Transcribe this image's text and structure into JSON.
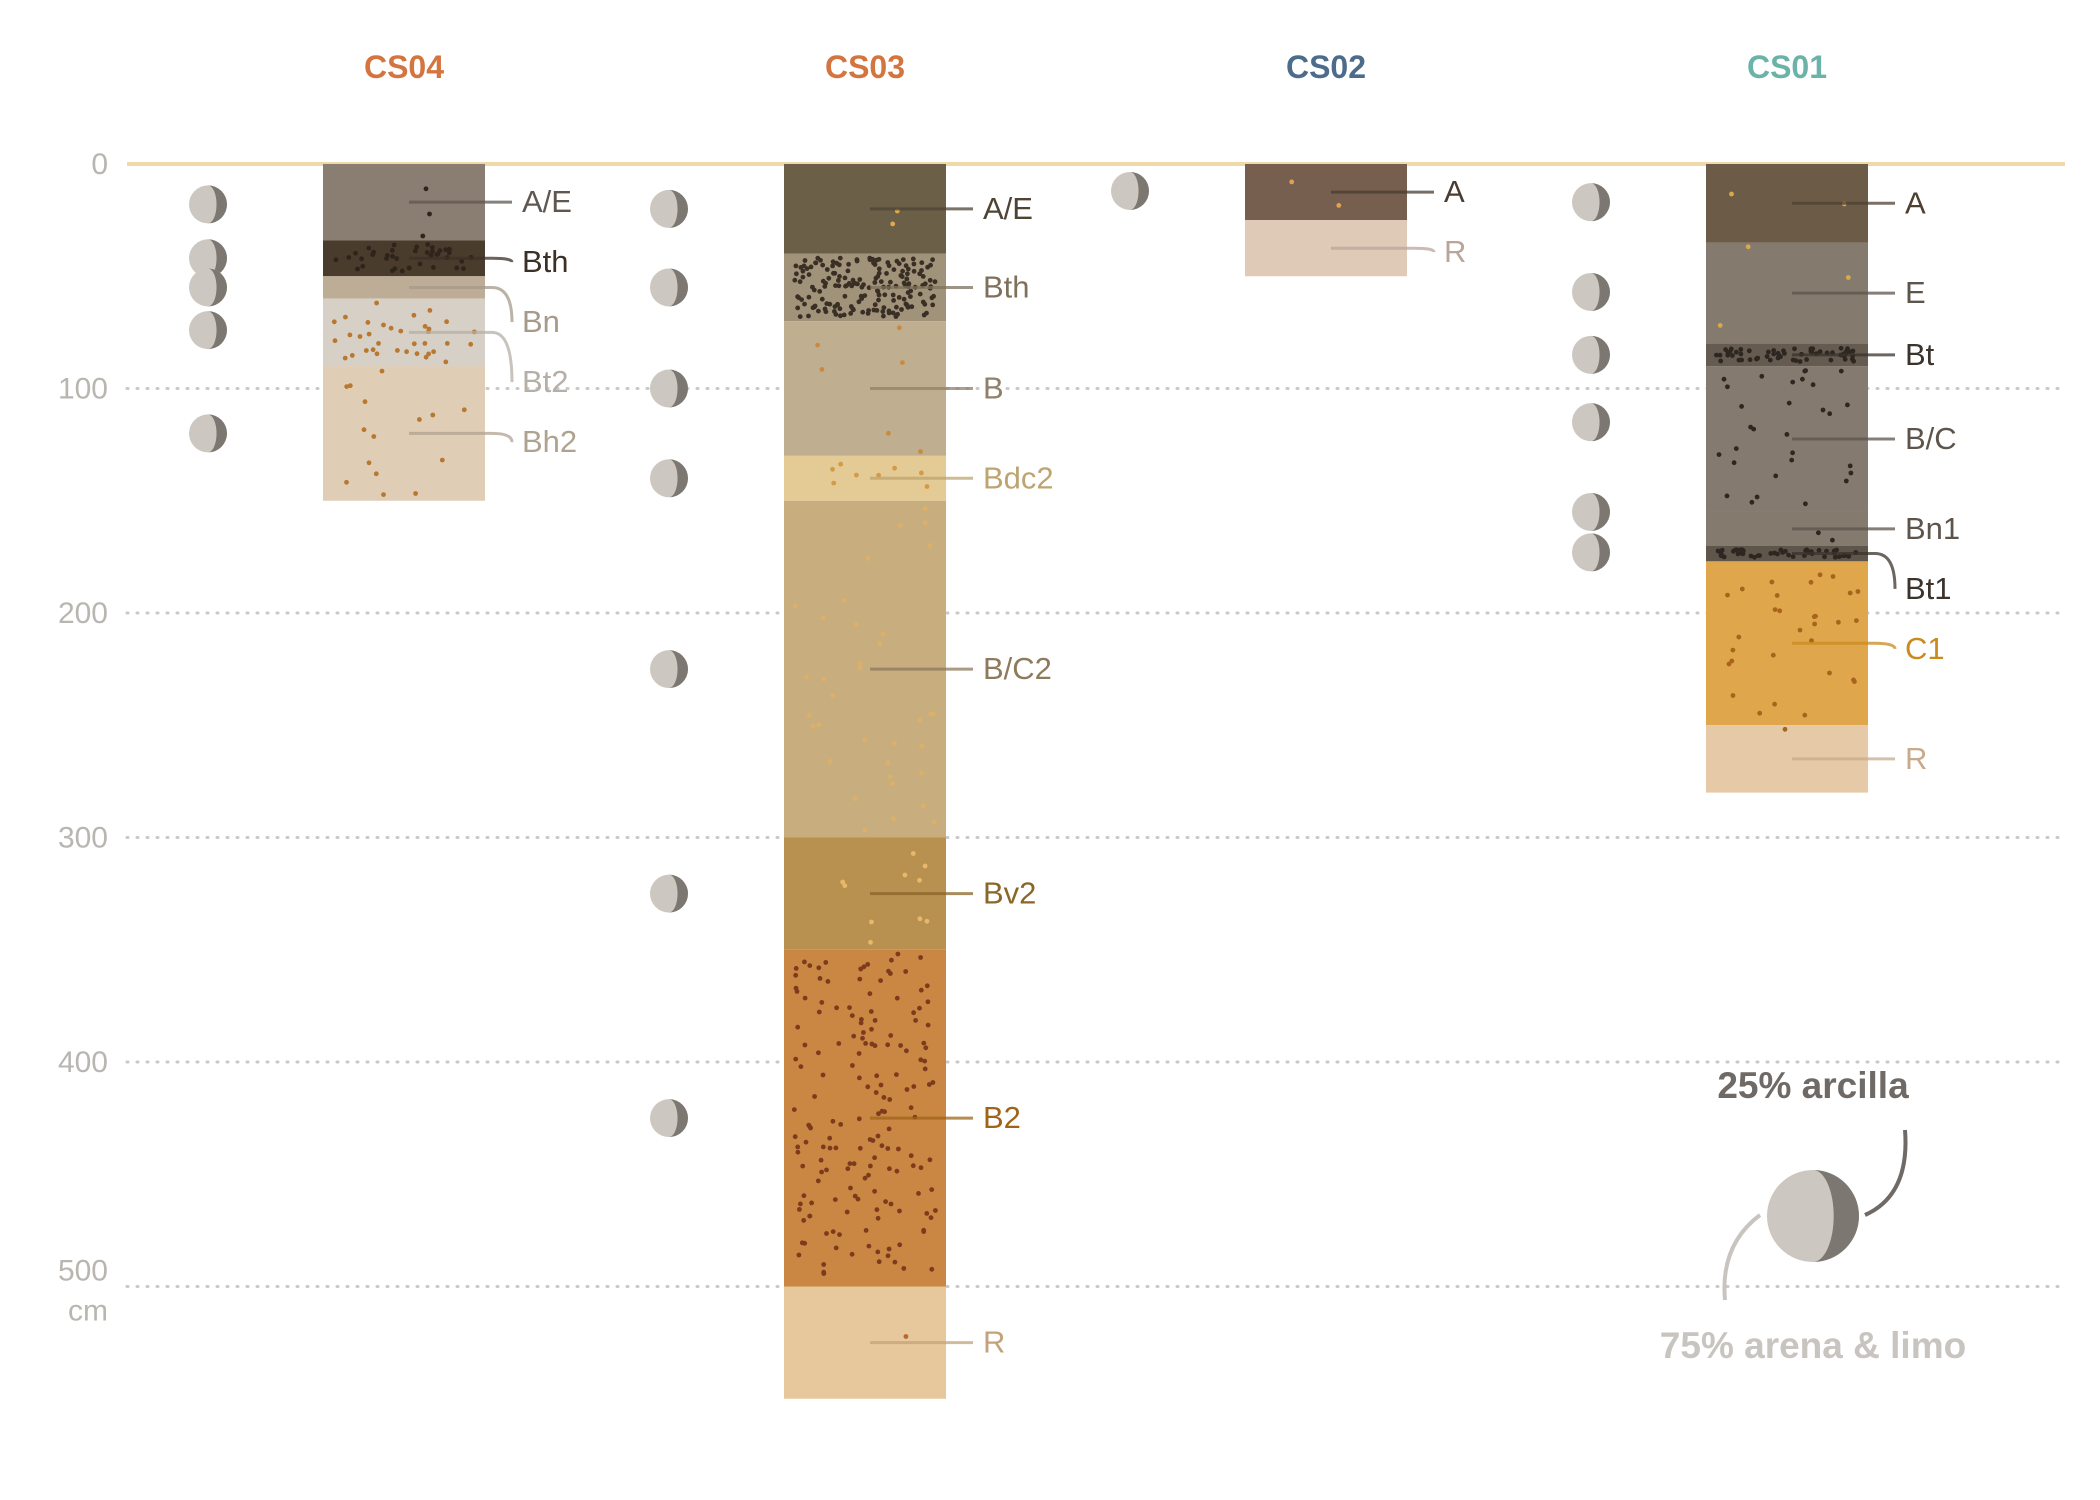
{
  "chart_data": {
    "type": "stacked-column",
    "y_axis": {
      "ticks": [
        0,
        100,
        200,
        300,
        400,
        500
      ],
      "unit": "cm",
      "range": [
        0,
        550
      ],
      "inverted": true,
      "gridlines": "dotted"
    },
    "surface_line_color": "#f0d9a8",
    "profiles": [
      {
        "name": "CS04",
        "color": "#d4743f",
        "horizons": [
          {
            "label": "A/E",
            "top": 0,
            "bottom": 34,
            "fill": "#8a7e72",
            "label_color": "#5f5750",
            "dots": 3,
            "dot_color": "#2e241b"
          },
          {
            "label": "Bth",
            "top": 34,
            "bottom": 50,
            "fill": "#4a3c2d",
            "label_color": "#3b3026",
            "dots": 40,
            "dot_color": "#2e241b"
          },
          {
            "label": "Bn",
            "top": 50,
            "bottom": 60,
            "fill": "#bdad96",
            "label_color": "#a69a8b",
            "dots": 0,
            "dot_color": "#a86d2f"
          },
          {
            "label": "Bt2",
            "top": 60,
            "bottom": 90,
            "fill": "#d7d0c6",
            "label_color": "#b6afa7",
            "dots": 35,
            "dot_color": "#b9772f"
          },
          {
            "label": "Bh2",
            "top": 90,
            "bottom": 150,
            "fill": "#dfcdb6",
            "label_color": "#b0a291",
            "dots": 15,
            "dot_color": "#b9772f"
          }
        ],
        "clay_markers": [
          18,
          42,
          55,
          74,
          120
        ]
      },
      {
        "name": "CS03",
        "color": "#d4743f",
        "horizons": [
          {
            "label": "A/E",
            "top": 0,
            "bottom": 40,
            "fill": "#6c5f48",
            "label_color": "#4e4436",
            "dots": 2,
            "dot_color": "#e0a94e"
          },
          {
            "label": "Bth",
            "top": 40,
            "bottom": 70,
            "fill": "#a1937a",
            "label_color": "#7f705b",
            "dots": 180,
            "dot_color": "#3a2f25"
          },
          {
            "label": "B",
            "top": 70,
            "bottom": 130,
            "fill": "#bfae90",
            "label_color": "#8f806a",
            "dots": 6,
            "dot_color": "#c98a3e"
          },
          {
            "label": "Bdc2",
            "top": 130,
            "bottom": 150,
            "fill": "#e4ca94",
            "label_color": "#bda470",
            "dots": 8,
            "dot_color": "#d49a45"
          },
          {
            "label": "B/C2",
            "top": 150,
            "bottom": 300,
            "fill": "#c8ad7e",
            "label_color": "#8e7a5c",
            "dots": 35,
            "dot_color": "#ddb068"
          },
          {
            "label": "Bv2",
            "top": 300,
            "bottom": 350,
            "fill": "#b89050",
            "label_color": "#8a6628",
            "dots": 10,
            "dot_color": "#e8b86a"
          },
          {
            "label": "B2",
            "top": 350,
            "bottom": 500,
            "fill": "#c98743",
            "label_color": "#a06418",
            "dots": 170,
            "dot_color": "#7d3a1c"
          },
          {
            "label": "R",
            "top": 500,
            "bottom": 550,
            "fill": "#e6c89c",
            "label_color": "#c3a37a",
            "dots": 1,
            "dot_color": "#b86a2e"
          }
        ],
        "clay_markers": [
          20,
          55,
          100,
          140,
          225,
          325,
          425
        ]
      },
      {
        "name": "CS02",
        "color": "#4c6c8c",
        "horizons": [
          {
            "label": "A",
            "top": 0,
            "bottom": 25,
            "fill": "#765f4f",
            "label_color": "#4a3c32",
            "dots": 2,
            "dot_color": "#e0a24e"
          },
          {
            "label": "R",
            "top": 25,
            "bottom": 50,
            "fill": "#dfc9b7",
            "label_color": "#b9a699",
            "dots": 0,
            "dot_color": "#b9772f"
          }
        ],
        "clay_markers": [
          12
        ]
      },
      {
        "name": "CS01",
        "color": "#6bb3a8",
        "horizons": [
          {
            "label": "A",
            "top": 0,
            "bottom": 35,
            "fill": "#6c5b47",
            "label_color": "#4e4030",
            "dots": 2,
            "dot_color": "#d9a84a"
          },
          {
            "label": "E",
            "top": 35,
            "bottom": 80,
            "fill": "#857a6e",
            "label_color": "#5d544c",
            "dots": 3,
            "dot_color": "#d9a84a"
          },
          {
            "label": "Bt",
            "top": 80,
            "bottom": 90,
            "fill": "#655b50",
            "label_color": "#3b332c",
            "dots": 60,
            "dot_color": "#2e2620"
          },
          {
            "label": "B/C",
            "top": 90,
            "bottom": 155,
            "fill": "#847a6f",
            "label_color": "#5d544c",
            "dots": 30,
            "dot_color": "#2e2620"
          },
          {
            "label": "Bn1",
            "top": 155,
            "bottom": 170,
            "fill": "#857a6e",
            "label_color": "#5d544c",
            "dots": 2,
            "dot_color": "#2e2620"
          },
          {
            "label": "Bt1",
            "top": 170,
            "bottom": 177,
            "fill": "#5e554b",
            "label_color": "#3b332c",
            "dots": 50,
            "dot_color": "#2e2620"
          },
          {
            "label": "C1",
            "top": 177,
            "bottom": 250,
            "fill": "#dfa64c",
            "label_color": "#c98a1e",
            "dots": 30,
            "dot_color": "#a8641c"
          },
          {
            "label": "R",
            "top": 250,
            "bottom": 280,
            "fill": "#e6caa7",
            "label_color": "#c7ab8c",
            "dots": 1,
            "dot_color": "#a8641c"
          }
        ],
        "clay_markers": [
          17,
          57,
          85,
          115,
          155,
          173
        ]
      }
    ],
    "legend": {
      "clay_label": "25% arcilla",
      "sand_silt_label": "75% arena & limo",
      "clay_color": "#6f6a66",
      "sand_silt_color": "#c8c4bf",
      "marker_light": "#cdc7c1",
      "marker_dark": "#7d7771",
      "clay_fraction": 0.25
    }
  }
}
